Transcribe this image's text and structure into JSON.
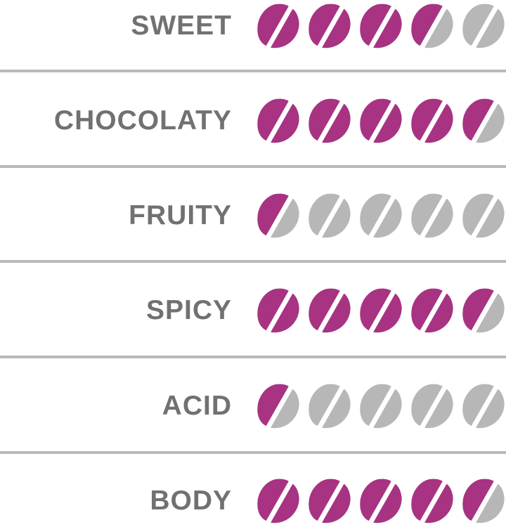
{
  "colors": {
    "filled": "#a73382",
    "empty": "#b7b7b7",
    "label": "#717171",
    "divider": "#b9b9b9"
  },
  "max_score": 5,
  "rows": [
    {
      "label": "SWEET",
      "score": 3.5
    },
    {
      "label": "CHOCOLATY",
      "score": 4.5
    },
    {
      "label": "FRUITY",
      "score": 0.5
    },
    {
      "label": "SPICY",
      "score": 4.5
    },
    {
      "label": "ACID",
      "score": 0.5
    },
    {
      "label": "BODY",
      "score": 4.5
    }
  ]
}
